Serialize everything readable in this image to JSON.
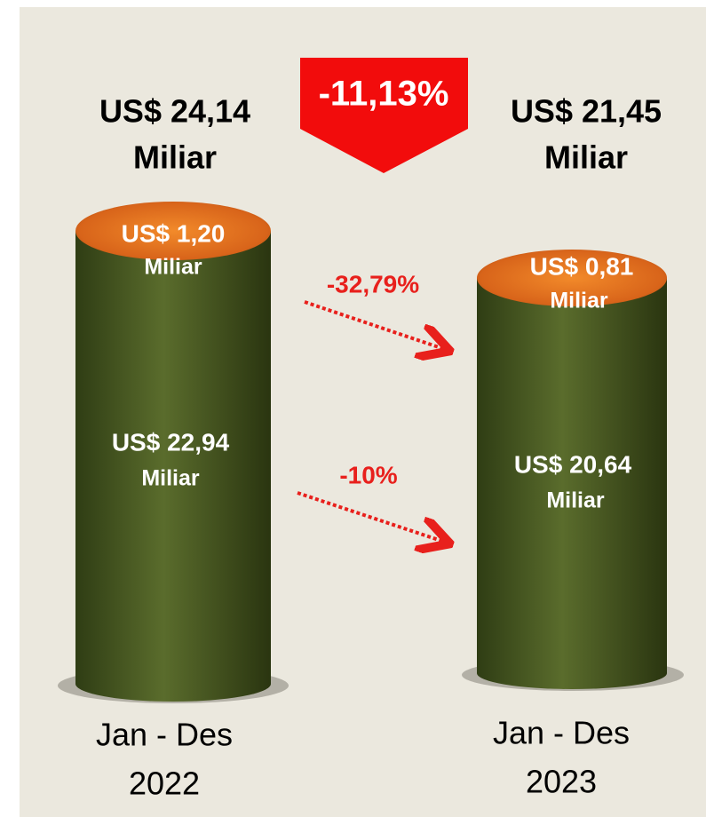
{
  "total_change": "-11,13%",
  "columns": [
    {
      "total": [
        "US$ 24,14",
        "Miliar"
      ],
      "top": [
        "US$ 1,20",
        "Miliar"
      ],
      "bottom": [
        "US$ 22,94",
        "Miliar"
      ],
      "period": [
        "Jan - Des",
        "2022"
      ]
    },
    {
      "total": [
        "US$ 21,45",
        "Miliar"
      ],
      "top": [
        "US$ 0,81",
        "Miliar"
      ],
      "bottom": [
        "US$ 20,64",
        "Miliar"
      ],
      "period": [
        "Jan - Des",
        "2023"
      ]
    }
  ],
  "arrows": [
    {
      "label": "-32,79%"
    },
    {
      "label": "-10%"
    }
  ]
}
